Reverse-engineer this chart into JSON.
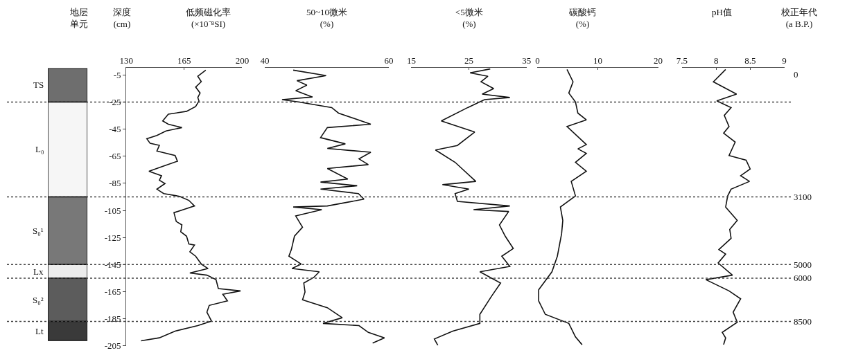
{
  "chart_data": [
    {
      "type": "bar",
      "title": "地层单元",
      "stacked": true,
      "categories": [
        null
      ],
      "ylim": [
        -205,
        0
      ],
      "tick_labels": false,
      "series": [
        {
          "name": "TS",
          "color": "#6e6e6e",
          "values": [
            -25
          ]
        },
        {
          "name": "L₀",
          "color": "#f6f6f6",
          "values": [
            -70
          ]
        },
        {
          "name": "S₀¹",
          "color": "#787878",
          "values": [
            -50
          ]
        },
        {
          "name": "Lx",
          "color": "#ececec",
          "values": [
            -10
          ]
        },
        {
          "name": "S₀²",
          "color": "#5c5c5c",
          "values": [
            -32
          ]
        },
        {
          "name": "Lt",
          "color": "#3a3a3a",
          "values": [
            -14
          ]
        }
      ],
      "ref_lines": [
        {
          "axis": "y",
          "value": -25,
          "color": "#444444",
          "line_style": "dotted"
        },
        {
          "axis": "y",
          "value": -95,
          "color": "#444444",
          "line_style": "dotted"
        },
        {
          "axis": "y",
          "value": -145,
          "color": "#444444",
          "line_style": "dotted"
        },
        {
          "axis": "y",
          "value": -155,
          "color": "#444444",
          "line_style": "dotted"
        },
        {
          "axis": "y",
          "value": -187,
          "color": "#444444",
          "line_style": "dotted"
        }
      ],
      "annotations": [
        "校正年代\n(a B.P.)",
        "0",
        "3100",
        "5000",
        "6000",
        "8500"
      ]
    },
    {
      "type": "line",
      "title": "低频磁化率\n(×10⁻⁸SI)",
      "ylabel": "深度\n(cm)",
      "xlim": [
        130,
        200
      ],
      "xticks": [
        130,
        165,
        200
      ],
      "ylim": [
        -205,
        0
      ],
      "yticks": [
        -5,
        -25,
        -45,
        -65,
        -85,
        -105,
        -125,
        -145,
        -165,
        -185,
        -205
      ],
      "series": [
        {
          "color": "#111111",
          "x": [
            178.0,
            173.2,
            175.3,
            171.9,
            174.6,
            173.2,
            173.9,
            171.9,
            166.4,
            155.4,
            152.0,
            155.4,
            163.6,
            154.0,
            148.5,
            142.4,
            144.4,
            150.0,
            148.5,
            159.5,
            160.9,
            151.3,
            143.7,
            151.3,
            150.0,
            153.4,
            148.5,
            152.6,
            162.2,
            167.8,
            171.2,
            165.0,
            158.8,
            160.2,
            163.6,
            162.9,
            166.4,
            167.8,
            171.2,
            168.4,
            171.9,
            175.3,
            179.4,
            168.4,
            178.7,
            184.2,
            185.6,
            199.0,
            188.3,
            191.1,
            180.1,
            178.7,
            181.5,
            173.2,
            159.5,
            150.0,
            138.9
          ],
          "values": [
            -1.5,
            -6,
            -10,
            -14,
            -18.4,
            -21.7,
            -24.2,
            -28.3,
            -31.9,
            -34,
            -39,
            -41.4,
            -43.9,
            -46.4,
            -49.7,
            -52.1,
            -55.5,
            -57,
            -61.2,
            -64.5,
            -68.7,
            -72.8,
            -76.1,
            -79.4,
            -82.7,
            -85.2,
            -89.3,
            -92.6,
            -94.6,
            -97.6,
            -101.7,
            -104.2,
            -106.7,
            -113.2,
            -115.7,
            -120.7,
            -124,
            -129.8,
            -130.6,
            -135.5,
            -138.8,
            -144.6,
            -147.9,
            -151.2,
            -152.8,
            -156.1,
            -162.7,
            -164.4,
            -166.9,
            -171.8,
            -175.1,
            -180.1,
            -186.7,
            -190,
            -194.1,
            -199,
            -201.2
          ]
        }
      ]
    },
    {
      "type": "line",
      "title": "50~10微米\n(%)",
      "xlim": [
        40,
        60
      ],
      "xticks": [
        40,
        60
      ],
      "ylim": [
        -205,
        0
      ],
      "tick_labels": "x",
      "series": [
        {
          "color": "#111111",
          "x": [
            44.6,
            49.9,
            45.2,
            46.8,
            45.0,
            47.7,
            42.8,
            45.4,
            50.8,
            51.9,
            57.1,
            50.1,
            49.0,
            53.0,
            50.1,
            57.1,
            55.2,
            56.7,
            50.1,
            53.4,
            49.0,
            54.9,
            49.0,
            55.1,
            56.0,
            50.1,
            44.6,
            49.2,
            45.0,
            46.1,
            44.8,
            44.3,
            43.9,
            45.9,
            44.4,
            48.8,
            47.9,
            46.3,
            46.5,
            46.1,
            50.1,
            52.5,
            49.4,
            55.2,
            56.7,
            59.3,
            57.4
          ],
          "values": [
            -1.5,
            -5.5,
            -9.3,
            -12.6,
            -16.7,
            -21.3,
            -23.3,
            -24.9,
            -29.1,
            -33.2,
            -41.4,
            -43.9,
            -51.3,
            -55.9,
            -59.3,
            -62.1,
            -67,
            -71.2,
            -74.1,
            -81.9,
            -84.1,
            -86.8,
            -89.3,
            -92.6,
            -96.7,
            -101.7,
            -102.5,
            -104.5,
            -109.1,
            -117.4,
            -124,
            -133.9,
            -138.8,
            -144.6,
            -147.9,
            -150.3,
            -154.5,
            -158.6,
            -165.2,
            -171,
            -176.8,
            -184.2,
            -188.4,
            -190,
            -195,
            -199.1,
            -202.9
          ]
        }
      ]
    },
    {
      "type": "line",
      "title": "<5微米\n(%)",
      "xlim": [
        15,
        35
      ],
      "xticks": [
        15,
        25,
        35
      ],
      "ylim": [
        -205,
        0
      ],
      "tick_labels": "x",
      "series": [
        {
          "color": "#111111",
          "x": [
            28.7,
            25.2,
            28.3,
            27.1,
            29.3,
            27.3,
            32.1,
            27.7,
            24.8,
            20.2,
            26.0,
            23.0,
            19.2,
            22.6,
            26.2,
            20.4,
            25.0,
            22.6,
            23.0,
            32.1,
            25.8,
            31.9,
            30.3,
            31.3,
            32.7,
            30.7,
            32.1,
            26.9,
            30.5,
            28.9,
            26.9,
            26.9,
            22.2,
            19.0,
            19.6
          ],
          "values": [
            -0.6,
            -3.5,
            -6,
            -10.1,
            -15.1,
            -19.2,
            -21.7,
            -23.3,
            -29.1,
            -39,
            -47.2,
            -57.1,
            -60.4,
            -69.5,
            -83.6,
            -86,
            -89.3,
            -92.6,
            -98.4,
            -101.7,
            -104.5,
            -105.8,
            -115.7,
            -124,
            -133.1,
            -138.8,
            -146.3,
            -150.3,
            -158.6,
            -168.5,
            -181.7,
            -188.4,
            -194.1,
            -199.9,
            -204.5
          ]
        }
      ]
    },
    {
      "type": "line",
      "title": "碳酸钙\n(%)",
      "xlim": [
        0,
        20
      ],
      "xticks": [
        0,
        10,
        20
      ],
      "ylim": [
        -205,
        0
      ],
      "tick_labels": "x",
      "series": [
        {
          "color": "#111111",
          "x": [
            4.9,
            5.9,
            5.2,
            6.3,
            6.7,
            8.1,
            4.9,
            8.1,
            6.7,
            8.1,
            6.3,
            8.1,
            5.6,
            6.3,
            3.8,
            4.2,
            4.0,
            3.3,
            2.4,
            0.2,
            0.2,
            1.3,
            5.2,
            6.3,
            7.4
          ],
          "values": [
            -1,
            -10.1,
            -18.4,
            -25,
            -33.2,
            -38.2,
            -43.1,
            -56.4,
            -59.6,
            -62.9,
            -69.5,
            -76.1,
            -83.6,
            -94.3,
            -102.5,
            -112.4,
            -122.3,
            -138.8,
            -150.3,
            -163.6,
            -171.8,
            -181.7,
            -188.4,
            -198.3,
            -204.1
          ]
        }
      ]
    },
    {
      "type": "line",
      "title": "pH值",
      "xlim": [
        7.5,
        9
      ],
      "xticks": [
        7.5,
        8,
        8.5,
        9
      ],
      "ylim": [
        -205,
        0
      ],
      "tick_labels": "x",
      "series": [
        {
          "color": "#111111",
          "x": [
            8.14,
            7.96,
            8.3,
            8.01,
            8.22,
            8.12,
            8.19,
            8.11,
            8.28,
            8.19,
            8.44,
            8.5,
            8.36,
            8.49,
            8.22,
            8.17,
            8.14,
            8.31,
            8.2,
            8.22,
            8.04,
            8.14,
            8.03,
            8.24,
            7.85,
            8.19,
            8.36,
            8.25,
            8.31,
            8.09,
            8.14,
            8.11
          ],
          "values": [
            -1,
            -10.1,
            -19.2,
            -24.2,
            -29.1,
            -34.9,
            -43.1,
            -48,
            -54.6,
            -64.5,
            -67.9,
            -74.4,
            -79.4,
            -83.6,
            -89.3,
            -94.3,
            -102.5,
            -112.4,
            -119,
            -125.6,
            -133.9,
            -137.2,
            -143.8,
            -152.8,
            -156.1,
            -164.4,
            -170.2,
            -180.1,
            -187.5,
            -195,
            -199.1,
            -204
          ]
        }
      ]
    }
  ]
}
